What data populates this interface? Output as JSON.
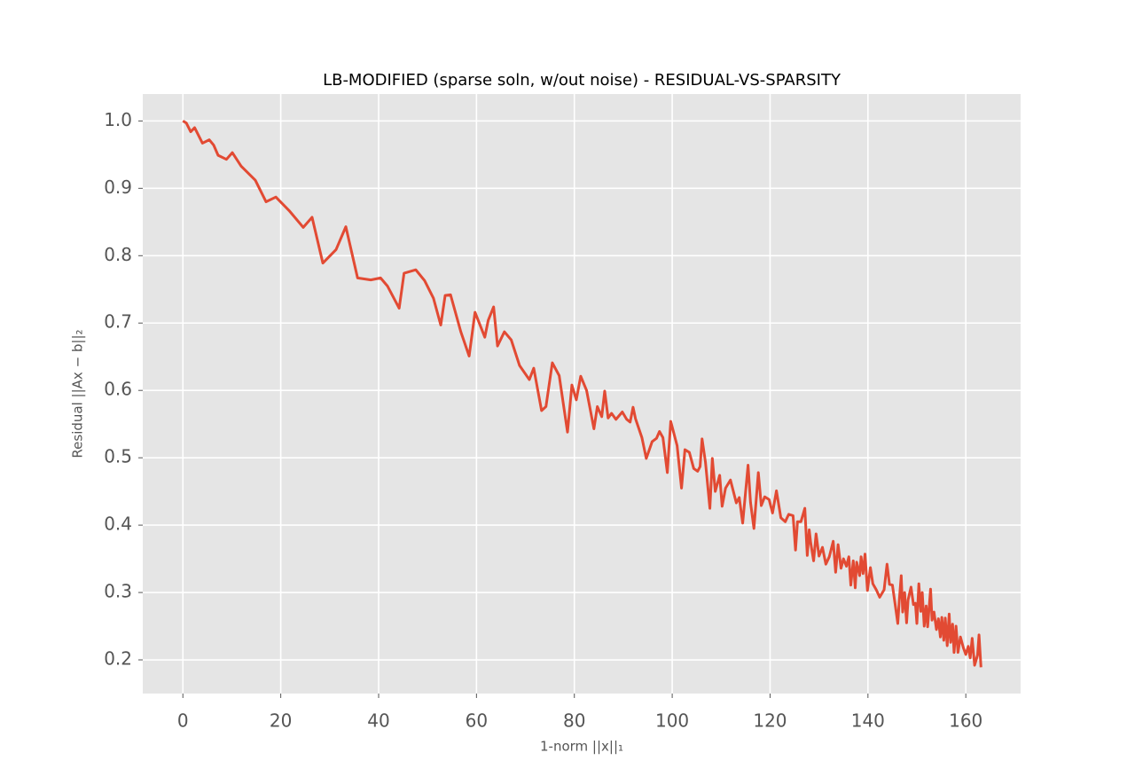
{
  "chart_data": {
    "type": "line",
    "title": "LB-MODIFIED (sparse soln, w/out noise) - RESIDUAL-VS-SPARSITY",
    "x_label": "1-norm ||x||₁",
    "y_label": "Residual ||Ax − b||₂",
    "color": "#e24a33",
    "grid": true,
    "xlim": [
      -8.2,
      171.2
    ],
    "ylim": [
      0.15,
      1.04
    ],
    "xticks": [
      0,
      20,
      40,
      60,
      80,
      100,
      120,
      140,
      160
    ],
    "yticks": [
      0.2,
      0.3,
      0.4,
      0.5,
      0.6,
      0.7,
      0.8,
      0.9,
      {
        "value": 1.0,
        "label": "1.0"
      }
    ],
    "x": [
      0,
      0.7,
      1.6,
      2.4,
      4.0,
      5.4,
      6.3,
      7.2,
      8.9,
      10.1,
      11.9,
      14.8,
      17.0,
      19.0,
      21.7,
      24.6,
      26.4,
      28.6,
      31.3,
      33.3,
      35.7,
      38.4,
      40.4,
      41.8,
      44.2,
      45.2,
      47.6,
      49.4,
      51.2,
      52.7,
      53.6,
      54.7,
      56.8,
      58.5,
      59.7,
      61.7,
      62.4,
      63.5,
      64.3,
      65.7,
      67.1,
      68.8,
      70.8,
      71.7,
      73.3,
      74.2,
      75.5,
      76.9,
      78.6,
      79.5,
      80.4,
      81.3,
      82.5,
      84.0,
      84.7,
      85.6,
      86.2,
      86.9,
      87.6,
      88.5,
      89.8,
      90.7,
      91.4,
      92.0,
      92.5,
      93.8,
      94.7,
      95.9,
      96.8,
      97.4,
      98.1,
      99.0,
      99.7,
      101.0,
      101.9,
      102.6,
      103.5,
      104.4,
      105.2,
      105.7,
      106.1,
      106.8,
      107.7,
      108.2,
      108.8,
      109.7,
      110.2,
      110.9,
      111.9,
      113.1,
      113.7,
      114.4,
      115.5,
      116.0,
      116.7,
      117.6,
      118.2,
      118.9,
      119.8,
      120.5,
      121.3,
      122.2,
      123.1,
      123.8,
      124.7,
      125.2,
      125.6,
      126.3,
      127.1,
      127.6,
      128.0,
      128.3,
      128.9,
      129.4,
      130.0,
      130.7,
      131.4,
      132.1,
      132.9,
      133.4,
      133.9,
      134.5,
      135.0,
      135.6,
      136.1,
      136.5,
      137.0,
      137.4,
      137.7,
      138.3,
      138.6,
      139.0,
      139.4,
      139.9,
      140.5,
      141.0,
      141.7,
      142.4,
      143.3,
      143.9,
      144.4,
      145.0,
      145.7,
      146.1,
      146.4,
      146.8,
      147.1,
      147.5,
      147.9,
      148.2,
      148.8,
      149.3,
      149.7,
      150.0,
      150.4,
      150.8,
      151.1,
      151.5,
      151.9,
      152.2,
      152.8,
      153.1,
      153.5,
      154.0,
      154.4,
      154.8,
      155.1,
      155.5,
      155.8,
      156.2,
      156.6,
      156.9,
      157.3,
      157.6,
      158.0,
      158.4,
      158.9,
      159.5,
      160.0,
      160.5,
      160.9,
      161.3,
      161.8,
      162.4,
      162.7,
      163.1
    ],
    "values": [
      1.0,
      0.997,
      0.984,
      0.99,
      0.967,
      0.972,
      0.964,
      0.949,
      0.943,
      0.953,
      0.933,
      0.912,
      0.88,
      0.887,
      0.867,
      0.842,
      0.857,
      0.789,
      0.809,
      0.843,
      0.767,
      0.764,
      0.767,
      0.755,
      0.722,
      0.774,
      0.779,
      0.763,
      0.737,
      0.697,
      0.741,
      0.742,
      0.687,
      0.651,
      0.716,
      0.679,
      0.704,
      0.724,
      0.666,
      0.687,
      0.675,
      0.637,
      0.616,
      0.633,
      0.57,
      0.576,
      0.641,
      0.622,
      0.538,
      0.608,
      0.586,
      0.621,
      0.6,
      0.543,
      0.576,
      0.561,
      0.599,
      0.559,
      0.566,
      0.557,
      0.568,
      0.557,
      0.553,
      0.575,
      0.558,
      0.53,
      0.499,
      0.524,
      0.529,
      0.539,
      0.53,
      0.478,
      0.554,
      0.518,
      0.455,
      0.512,
      0.508,
      0.484,
      0.48,
      0.487,
      0.528,
      0.493,
      0.425,
      0.499,
      0.45,
      0.474,
      0.428,
      0.455,
      0.467,
      0.433,
      0.441,
      0.403,
      0.489,
      0.434,
      0.395,
      0.478,
      0.429,
      0.442,
      0.438,
      0.418,
      0.451,
      0.411,
      0.405,
      0.416,
      0.414,
      0.363,
      0.405,
      0.405,
      0.425,
      0.355,
      0.393,
      0.374,
      0.347,
      0.387,
      0.354,
      0.367,
      0.342,
      0.353,
      0.376,
      0.33,
      0.371,
      0.336,
      0.35,
      0.339,
      0.353,
      0.311,
      0.347,
      0.307,
      0.345,
      0.325,
      0.353,
      0.328,
      0.357,
      0.303,
      0.337,
      0.313,
      0.304,
      0.293,
      0.304,
      0.342,
      0.312,
      0.311,
      0.275,
      0.254,
      0.288,
      0.325,
      0.271,
      0.3,
      0.255,
      0.289,
      0.308,
      0.282,
      0.284,
      0.254,
      0.313,
      0.272,
      0.3,
      0.25,
      0.28,
      0.249,
      0.305,
      0.259,
      0.271,
      0.245,
      0.261,
      0.234,
      0.263,
      0.229,
      0.262,
      0.221,
      0.268,
      0.226,
      0.253,
      0.211,
      0.25,
      0.211,
      0.234,
      0.218,
      0.208,
      0.22,
      0.203,
      0.232,
      0.192,
      0.207,
      0.237,
      0.189
    ]
  }
}
